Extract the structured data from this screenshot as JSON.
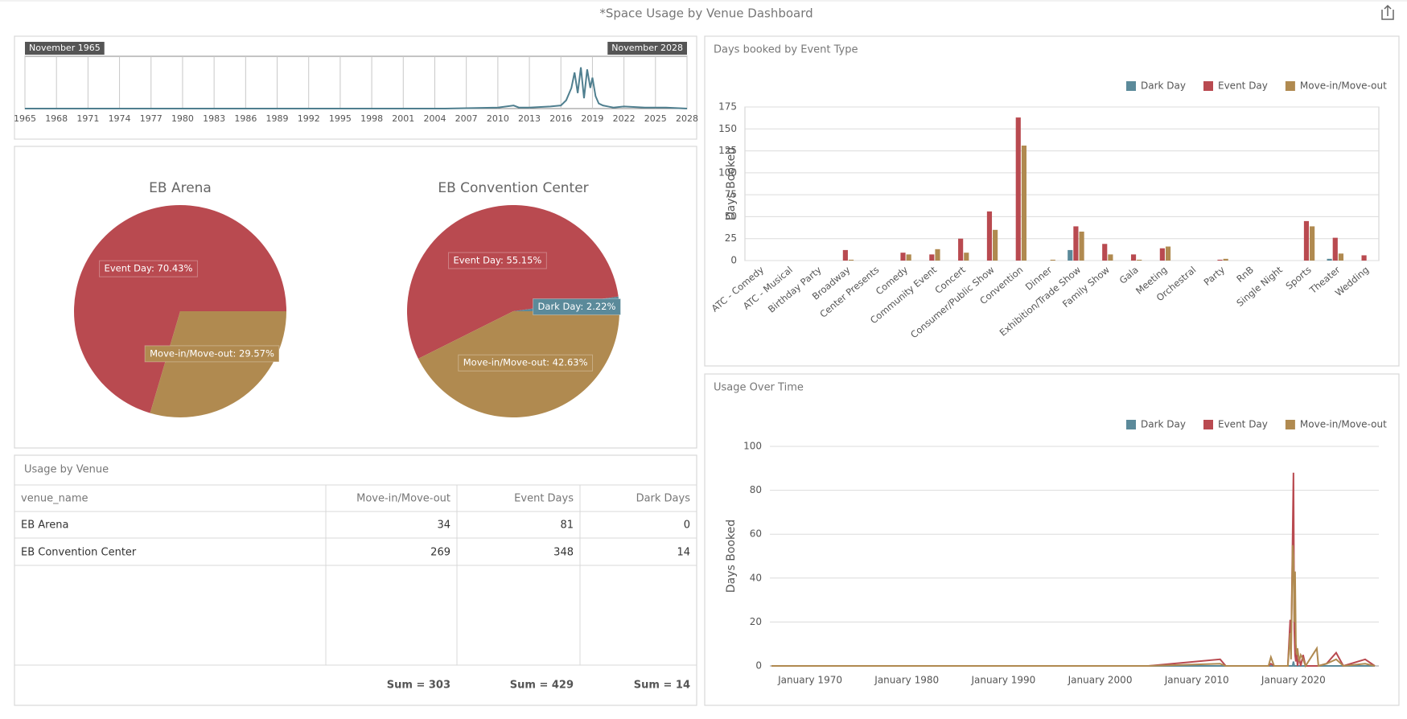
{
  "title": "*Space Usage by Venue Dashboard",
  "chart_data": [
    {
      "type": "line",
      "start_label": "November 1965",
      "end_label": "November 2028",
      "x": [
        1965,
        2005,
        2010,
        2011.5,
        2012,
        2013,
        2015,
        2016,
        2016.5,
        2017,
        2017.3,
        2017.6,
        2017.9,
        2018.2,
        2018.5,
        2018.8,
        2019,
        2019.3,
        2019.6,
        2020,
        2020.5,
        2021,
        2022,
        2024,
        2026,
        2028
      ],
      "values": [
        0,
        0,
        1,
        3,
        1,
        1,
        2,
        3,
        8,
        20,
        35,
        15,
        40,
        10,
        38,
        20,
        30,
        12,
        5,
        3,
        2,
        1,
        2,
        1,
        1,
        0
      ],
      "color": "#4f7f8f",
      "xlim": [
        1965,
        2028
      ],
      "xticks": [
        1965,
        1968,
        1971,
        1974,
        1977,
        1980,
        1983,
        1986,
        1989,
        1992,
        1995,
        1998,
        2001,
        2004,
        2007,
        2010,
        2013,
        2016,
        2019,
        2022,
        2025,
        2028
      ],
      "grid": "x"
    },
    {
      "type": "pie",
      "title": "EB Arena",
      "categories": [
        "Event Day",
        "Move-in/Move-out"
      ],
      "values": [
        70.43,
        29.57
      ],
      "value_labels": [
        "Event Day: 70.43%",
        "Move-in/Move-out: 29.57%"
      ],
      "colors": [
        "#b94a50",
        "#b08a50"
      ]
    },
    {
      "type": "pie",
      "title": "EB Convention Center",
      "categories": [
        "Dark Day",
        "Event Day",
        "Move-in/Move-out"
      ],
      "values": [
        2.22,
        55.15,
        42.63
      ],
      "value_labels": [
        "Dark Day: 2.22%",
        "Event Day: 55.15%",
        "Move-in/Move-out: 42.63%"
      ],
      "colors": [
        "#5b8a9a",
        "#b94a50",
        "#b08a50"
      ]
    },
    {
      "type": "bar",
      "title": "Days booked by Event Type",
      "y_label": "Days Booked",
      "categories": [
        "ATC - Comedy",
        "ATC - Musical",
        "Birthday Party",
        "Broadway",
        "Center Presents",
        "Comedy",
        "Community Event",
        "Concert",
        "Consumer/Public Show",
        "Convention",
        "Dinner",
        "Exhibition/Trade Show",
        "Family Show",
        "Gala",
        "Meeting",
        "Orchestral",
        "Party",
        "RnB",
        "Single Night",
        "Sports",
        "Theater",
        "Wedding"
      ],
      "series": [
        {
          "name": "Dark Day",
          "color": "#5b8a9a",
          "values": [
            0,
            0,
            0,
            0,
            0,
            0,
            0,
            0,
            0,
            0,
            0,
            12,
            0,
            0,
            0,
            0,
            0,
            0,
            0,
            0,
            2,
            0
          ]
        },
        {
          "name": "Event Day",
          "color": "#b94a50",
          "values": [
            0,
            0,
            0,
            12,
            0,
            9,
            7,
            25,
            56,
            163,
            0,
            39,
            19,
            7,
            14,
            0,
            1,
            0,
            0,
            45,
            26,
            6
          ]
        },
        {
          "name": "Move-in/Move-out",
          "color": "#b08a50",
          "values": [
            0,
            0,
            0,
            1,
            0,
            7,
            13,
            9,
            35,
            131,
            1,
            33,
            7,
            1,
            16,
            0,
            2,
            0,
            0,
            39,
            8,
            0
          ]
        }
      ],
      "ylim": [
        0,
        175
      ],
      "yticks": [
        0,
        25,
        50,
        75,
        100,
        125,
        150,
        175
      ],
      "grid": "y"
    },
    {
      "type": "line",
      "title": "Usage Over Time",
      "y_label": "Days Booked",
      "x": [
        "1966-01",
        "2005-01",
        "2012-06",
        "2013-01",
        "2017-06",
        "2017-09",
        "2018-01",
        "2019-06",
        "2019-09",
        "2019-10",
        "2019-12",
        "2020-01",
        "2020-02",
        "2020-03",
        "2020-04",
        "2020-05",
        "2020-06",
        "2020-08",
        "2020-10",
        "2021-01",
        "2021-04",
        "2022-06",
        "2022-08",
        "2023-06",
        "2024-06",
        "2025-03",
        "2027-06",
        "2028-06"
      ],
      "series": [
        {
          "name": "Dark Day",
          "color": "#5b8a9a",
          "values": [
            0,
            0,
            0,
            0,
            0,
            0,
            0,
            0,
            0,
            0,
            0,
            2,
            0,
            0,
            0,
            0,
            0,
            0,
            0,
            0,
            0,
            0,
            0,
            0,
            0,
            0,
            0,
            0
          ]
        },
        {
          "name": "Event Day",
          "color": "#b94a50",
          "values": [
            0,
            0,
            3,
            0,
            0,
            1,
            0,
            0,
            21,
            5,
            60,
            88,
            17,
            5,
            2,
            6,
            0,
            4,
            0,
            5,
            0,
            0,
            0,
            1,
            6,
            0,
            3,
            0
          ]
        },
        {
          "name": "Move-in/Move-out",
          "color": "#b08a50",
          "values": [
            0,
            0,
            1,
            0,
            0,
            4,
            0,
            0,
            15,
            3,
            55,
            50,
            20,
            43,
            10,
            5,
            8,
            2,
            5,
            3,
            0,
            8,
            0,
            1,
            3,
            0,
            1,
            0
          ]
        }
      ],
      "xlim": [
        "1965-11",
        "2028-11"
      ],
      "xticks": [
        {
          "value": "1970-01",
          "label": "January 1970"
        },
        {
          "value": "1980-01",
          "label": "January 1980"
        },
        {
          "value": "1990-01",
          "label": "January 1990"
        },
        {
          "value": "2000-01",
          "label": "January 2000"
        },
        {
          "value": "2010-01",
          "label": "January 2010"
        },
        {
          "value": "2020-01",
          "label": "January 2020"
        }
      ],
      "ylim": [
        0,
        100
      ],
      "yticks": [
        0,
        20,
        40,
        60,
        80,
        100
      ],
      "grid": "y"
    }
  ],
  "table": {
    "title": "Usage by Venue",
    "columns": [
      "venue_name",
      "Move-in/Move-out",
      "Event Days",
      "Dark Days"
    ],
    "rows": [
      [
        "EB Arena",
        34,
        81,
        0
      ],
      [
        "EB Convention Center",
        269,
        348,
        14
      ]
    ],
    "footer": [
      "Sum = 303",
      "Sum = 429",
      "Sum = 14"
    ]
  }
}
